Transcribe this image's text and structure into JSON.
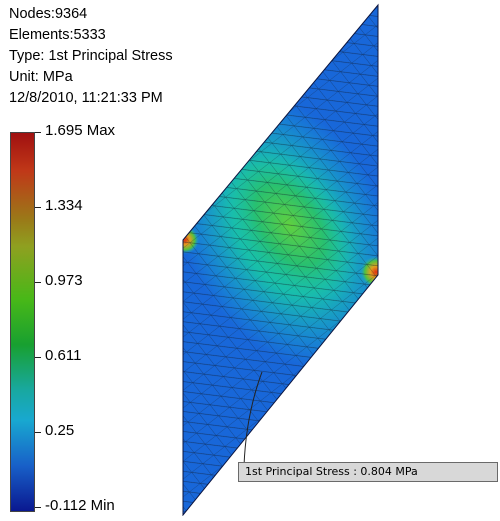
{
  "info": {
    "nodes": "Nodes:9364",
    "elements": "Elements:5333",
    "type": "Type: 1st Principal Stress",
    "unit": "Unit: MPa",
    "datetime": "12/8/2010, 11:21:33 PM"
  },
  "legend": {
    "max_label": "1.695 Max",
    "ticks": [
      "1.334",
      "0.973",
      "0.611",
      "0.25"
    ],
    "min_label": "-0.112 Min",
    "colors": {
      "max": "#a01010",
      "mid_high": "#9a7a18",
      "mid": "#18a030",
      "mid_low": "#18a8d0",
      "min": "#0a1890"
    }
  },
  "probe": {
    "label": "1st Principal Stress : 0.804 MPa"
  }
}
